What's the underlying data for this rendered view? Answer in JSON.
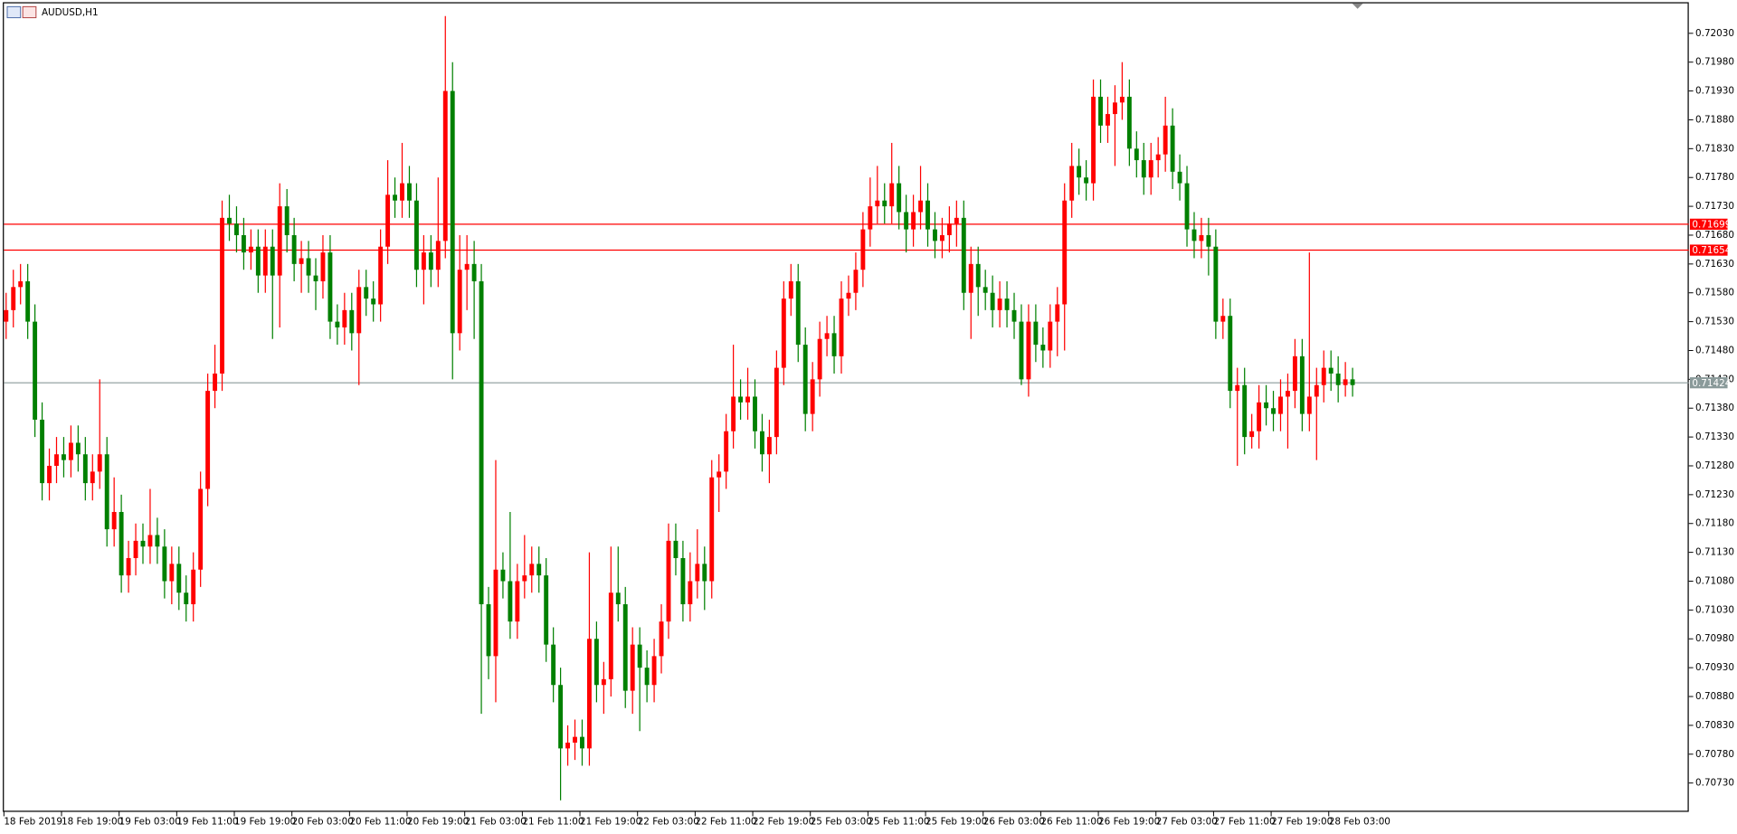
{
  "chart_data": {
    "type": "candlestick",
    "title": "AUDUSD,H1",
    "categories": [
      "18 Feb 2019",
      null,
      null,
      null,
      null,
      null,
      null,
      null,
      "18 Feb 19:00",
      null,
      null,
      null,
      null,
      null,
      null,
      null,
      "19 Feb 03:00",
      null,
      null,
      null,
      null,
      null,
      null,
      null,
      "19 Feb 11:00",
      null,
      null,
      null,
      null,
      null,
      null,
      null,
      "19 Feb 19:00",
      null,
      null,
      null,
      null,
      null,
      null,
      null,
      "20 Feb 03:00",
      null,
      null,
      null,
      null,
      null,
      null,
      null,
      "20 Feb 11:00",
      null,
      null,
      null,
      null,
      null,
      null,
      null,
      "20 Feb 19:00",
      null,
      null,
      null,
      null,
      null,
      null,
      null,
      "21 Feb 03:00",
      null,
      null,
      null,
      null,
      null,
      null,
      null,
      "21 Feb 11:00",
      null,
      null,
      null,
      null,
      null,
      null,
      null,
      "21 Feb 19:00",
      null,
      null,
      null,
      null,
      null,
      null,
      null,
      "22 Feb 03:00",
      null,
      null,
      null,
      null,
      null,
      null,
      null,
      "22 Feb 11:00",
      null,
      null,
      null,
      null,
      null,
      null,
      null,
      "22 Feb 19:00",
      null,
      null,
      null,
      null,
      null,
      null,
      null,
      "25 Feb 03:00",
      null,
      null,
      null,
      null,
      null,
      null,
      null,
      "25 Feb 11:00",
      null,
      null,
      null,
      null,
      null,
      null,
      null,
      "25 Feb 19:00",
      null,
      null,
      null,
      null,
      null,
      null,
      null,
      "26 Feb 03:00",
      null,
      null,
      null,
      null,
      null,
      null,
      null,
      "26 Feb 11:00",
      null,
      null,
      null,
      null,
      null,
      null,
      null,
      "26 Feb 19:00",
      null,
      null,
      null,
      null,
      null,
      null,
      null,
      "27 Feb 03:00",
      null,
      null,
      null,
      null,
      null,
      null,
      null,
      "27 Feb 11:00",
      null,
      null,
      null,
      null,
      null,
      null,
      null,
      "27 Feb 19:00",
      null,
      null,
      null,
      null,
      null,
      null,
      null,
      "28 Feb 03:00",
      null,
      null,
      null
    ],
    "open": [
      0.7153,
      0.7155,
      0.7159,
      0.716,
      0.7153,
      0.7136,
      0.7125,
      0.7128,
      0.713,
      0.7129,
      0.7132,
      0.713,
      0.7125,
      0.7127,
      0.713,
      0.7117,
      0.712,
      0.7109,
      0.7112,
      0.7115,
      0.7114,
      0.7116,
      0.7114,
      0.7108,
      0.7111,
      0.7106,
      0.7104,
      0.711,
      0.7124,
      0.7141,
      0.7144,
      0.7171,
      0.717,
      0.7168,
      0.7165,
      0.7166,
      0.7161,
      0.7166,
      0.7161,
      0.7173,
      0.7168,
      0.7163,
      0.7164,
      0.7161,
      0.716,
      0.7165,
      0.7153,
      0.7152,
      0.7155,
      0.7151,
      0.7159,
      0.7157,
      0.7156,
      0.7166,
      0.7175,
      0.7174,
      0.7177,
      0.7174,
      0.7162,
      0.7165,
      0.7162,
      0.7167,
      0.7193,
      0.7151,
      0.7162,
      0.7163,
      0.716,
      0.7104,
      0.7095,
      0.711,
      0.7108,
      0.7101,
      0.7108,
      0.7109,
      0.7111,
      0.7109,
      0.7097,
      0.709,
      0.7079,
      0.708,
      0.7081,
      0.7079,
      0.7098,
      0.709,
      0.7091,
      0.7106,
      0.7104,
      0.7089,
      0.7097,
      0.7093,
      0.709,
      0.7095,
      0.7101,
      0.7115,
      0.7112,
      0.7104,
      0.7108,
      0.7111,
      0.7108,
      0.7126,
      0.7127,
      0.7134,
      0.714,
      0.7139,
      0.714,
      0.7134,
      0.713,
      0.7133,
      0.7145,
      0.7157,
      0.716,
      0.7149,
      0.7137,
      0.7143,
      0.715,
      0.7151,
      0.7147,
      0.7157,
      0.7158,
      0.7162,
      0.7169,
      0.7173,
      0.7174,
      0.7173,
      0.7177,
      0.7172,
      0.7169,
      0.7172,
      0.7174,
      0.7169,
      0.7167,
      0.7168,
      0.717,
      0.7171,
      0.7158,
      0.7163,
      0.7159,
      0.7158,
      0.7155,
      0.7157,
      0.7155,
      0.7153,
      0.7143,
      0.7153,
      0.7149,
      0.7148,
      0.7153,
      0.7156,
      0.7174,
      0.718,
      0.7178,
      0.7177,
      0.7192,
      0.7187,
      0.7189,
      0.7191,
      0.7192,
      0.7183,
      0.7181,
      0.7178,
      0.7181,
      0.7182,
      0.7187,
      0.7179,
      0.7177,
      0.7169,
      0.7167,
      0.7168,
      0.7166,
      0.7153,
      0.7154,
      0.7141,
      0.7142,
      0.7133,
      0.7134,
      0.7139,
      0.7138,
      0.7137,
      0.714,
      0.7141,
      0.7147,
      0.7137,
      0.714,
      0.7142,
      0.7145,
      0.7144,
      0.7142,
      0.7143
    ],
    "high": [
      0.7158,
      0.7162,
      0.7163,
      0.7163,
      0.7156,
      0.7139,
      0.7131,
      0.7133,
      0.7133,
      0.7135,
      0.7135,
      0.7133,
      0.713,
      0.7143,
      0.7133,
      0.7126,
      0.7123,
      0.7115,
      0.7118,
      0.7118,
      0.7124,
      0.7119,
      0.7117,
      0.7114,
      0.7114,
      0.7109,
      0.7113,
      0.7127,
      0.7144,
      0.7149,
      0.7174,
      0.7175,
      0.7173,
      0.7171,
      0.7169,
      0.7169,
      0.7169,
      0.7169,
      0.7177,
      0.7176,
      0.7171,
      0.7167,
      0.7167,
      0.7164,
      0.7168,
      0.7168,
      0.7156,
      0.7158,
      0.7158,
      0.7162,
      0.7162,
      0.716,
      0.7169,
      0.7181,
      0.7178,
      0.7184,
      0.718,
      0.7177,
      0.7168,
      0.7168,
      0.7178,
      0.7206,
      0.7198,
      0.7168,
      0.7168,
      0.7167,
      0.7163,
      0.7107,
      0.7129,
      0.7113,
      0.712,
      0.7111,
      0.7116,
      0.7114,
      0.7114,
      0.7112,
      0.71,
      0.7093,
      0.7083,
      0.7084,
      0.7084,
      0.7113,
      0.7101,
      0.7094,
      0.7114,
      0.7114,
      0.7107,
      0.71,
      0.71,
      0.7096,
      0.7098,
      0.7104,
      0.7118,
      0.7118,
      0.7115,
      0.7113,
      0.7117,
      0.7114,
      0.7129,
      0.713,
      0.7137,
      0.7149,
      0.7143,
      0.7145,
      0.7143,
      0.7137,
      0.7136,
      0.7148,
      0.716,
      0.7163,
      0.7163,
      0.7152,
      0.7146,
      0.7153,
      0.7154,
      0.7154,
      0.716,
      0.7161,
      0.7165,
      0.7172,
      0.7178,
      0.718,
      0.7177,
      0.7184,
      0.718,
      0.7175,
      0.7175,
      0.718,
      0.7177,
      0.7172,
      0.7171,
      0.7173,
      0.7174,
      0.7174,
      0.7166,
      0.7166,
      0.7162,
      0.7161,
      0.716,
      0.716,
      0.7158,
      0.7156,
      0.7156,
      0.7156,
      0.7152,
      0.7156,
      0.7159,
      0.7177,
      0.7184,
      0.7183,
      0.7181,
      0.7195,
      0.7195,
      0.7192,
      0.7194,
      0.7198,
      0.7195,
      0.7186,
      0.7184,
      0.7184,
      0.7185,
      0.7192,
      0.719,
      0.7182,
      0.718,
      0.7172,
      0.7171,
      0.7171,
      0.7169,
      0.7157,
      0.7157,
      0.7145,
      0.7145,
      0.7137,
      0.7142,
      0.7142,
      0.7141,
      0.7143,
      0.7144,
      0.715,
      0.715,
      0.7165,
      0.7145,
      0.7148,
      0.7148,
      0.7147,
      0.7146,
      0.7145
    ],
    "low": [
      0.715,
      0.7152,
      0.7156,
      0.715,
      0.7133,
      0.7122,
      0.7122,
      0.7125,
      0.7126,
      0.7126,
      0.7127,
      0.7122,
      0.7122,
      0.7124,
      0.7114,
      0.7114,
      0.7106,
      0.7106,
      0.7109,
      0.7111,
      0.7111,
      0.7111,
      0.7105,
      0.7104,
      0.7103,
      0.7101,
      0.7101,
      0.7107,
      0.7121,
      0.7138,
      0.7141,
      0.7167,
      0.7165,
      0.7162,
      0.7162,
      0.7158,
      0.7158,
      0.715,
      0.7152,
      0.7165,
      0.716,
      0.7158,
      0.7158,
      0.7155,
      0.7157,
      0.715,
      0.7149,
      0.7149,
      0.7148,
      0.7142,
      0.7154,
      0.7153,
      0.7153,
      0.7163,
      0.7171,
      0.7171,
      0.7171,
      0.7159,
      0.7156,
      0.7159,
      0.7159,
      0.7164,
      0.7143,
      0.7148,
      0.7155,
      0.715,
      0.7085,
      0.7091,
      0.7087,
      0.7105,
      0.7098,
      0.7098,
      0.7105,
      0.7106,
      0.7106,
      0.7094,
      0.7087,
      0.707,
      0.7076,
      0.7077,
      0.7076,
      0.7076,
      0.7087,
      0.7085,
      0.7088,
      0.7101,
      0.7086,
      0.7085,
      0.7082,
      0.7087,
      0.7087,
      0.7092,
      0.7098,
      0.7109,
      0.7101,
      0.7101,
      0.7105,
      0.7103,
      0.7105,
      0.712,
      0.7124,
      0.7131,
      0.7136,
      0.7136,
      0.7131,
      0.7127,
      0.7125,
      0.713,
      0.7142,
      0.7154,
      0.7146,
      0.7134,
      0.7134,
      0.714,
      0.7147,
      0.7144,
      0.7144,
      0.7154,
      0.7155,
      0.7159,
      0.7166,
      0.717,
      0.717,
      0.717,
      0.7169,
      0.7165,
      0.7166,
      0.7169,
      0.7166,
      0.7164,
      0.7164,
      0.7165,
      0.7166,
      0.7155,
      0.715,
      0.7154,
      0.7155,
      0.7152,
      0.7152,
      0.7152,
      0.715,
      0.7142,
      0.714,
      0.7146,
      0.7145,
      0.7145,
      0.7147,
      0.7148,
      0.7171,
      0.7175,
      0.7174,
      0.7174,
      0.7184,
      0.7184,
      0.718,
      0.7188,
      0.718,
      0.7178,
      0.7175,
      0.7175,
      0.7178,
      0.7179,
      0.7176,
      0.7174,
      0.7166,
      0.7164,
      0.7164,
      0.7161,
      0.715,
      0.715,
      0.7138,
      0.7128,
      0.713,
      0.7131,
      0.7131,
      0.7135,
      0.7134,
      0.7134,
      0.7131,
      0.7138,
      0.7134,
      0.7134,
      0.7129,
      0.7139,
      0.7141,
      0.7139,
      0.714,
      0.714
    ],
    "close": [
      0.7155,
      0.7159,
      0.716,
      0.7153,
      0.7136,
      0.7125,
      0.7128,
      0.713,
      0.7129,
      0.7132,
      0.713,
      0.7125,
      0.7127,
      0.713,
      0.7117,
      0.712,
      0.7109,
      0.7112,
      0.7115,
      0.7114,
      0.7116,
      0.7114,
      0.7108,
      0.7111,
      0.7106,
      0.7104,
      0.711,
      0.7124,
      0.7141,
      0.7144,
      0.7171,
      0.717,
      0.7168,
      0.7165,
      0.7166,
      0.7161,
      0.7166,
      0.7161,
      0.7173,
      0.7168,
      0.7163,
      0.7164,
      0.7161,
      0.716,
      0.7165,
      0.7153,
      0.7152,
      0.7155,
      0.7151,
      0.7159,
      0.7157,
      0.7156,
      0.7166,
      0.7175,
      0.7174,
      0.7177,
      0.7174,
      0.7162,
      0.7165,
      0.7162,
      0.7167,
      0.7193,
      0.7151,
      0.7162,
      0.7163,
      0.716,
      0.7104,
      0.7095,
      0.711,
      0.7108,
      0.7101,
      0.7108,
      0.7109,
      0.7111,
      0.7109,
      0.7097,
      0.709,
      0.7079,
      0.708,
      0.7081,
      0.7079,
      0.7098,
      0.709,
      0.7091,
      0.7106,
      0.7104,
      0.7089,
      0.7097,
      0.7093,
      0.709,
      0.7095,
      0.7101,
      0.7115,
      0.7112,
      0.7104,
      0.7108,
      0.7111,
      0.7108,
      0.7126,
      0.7127,
      0.7134,
      0.714,
      0.7139,
      0.714,
      0.7134,
      0.713,
      0.7133,
      0.7145,
      0.7157,
      0.716,
      0.7149,
      0.7137,
      0.7143,
      0.715,
      0.7151,
      0.7147,
      0.7157,
      0.7158,
      0.7162,
      0.7169,
      0.7173,
      0.7174,
      0.7173,
      0.7177,
      0.7172,
      0.7169,
      0.7172,
      0.7174,
      0.7169,
      0.7167,
      0.7168,
      0.717,
      0.7171,
      0.7158,
      0.7163,
      0.7159,
      0.7158,
      0.7155,
      0.7157,
      0.7155,
      0.7153,
      0.7143,
      0.7153,
      0.7149,
      0.7148,
      0.7153,
      0.7156,
      0.7174,
      0.718,
      0.7178,
      0.7177,
      0.7192,
      0.7187,
      0.7189,
      0.7191,
      0.7192,
      0.7183,
      0.7181,
      0.7178,
      0.7181,
      0.7182,
      0.7187,
      0.7179,
      0.7177,
      0.7169,
      0.7167,
      0.7168,
      0.7166,
      0.7153,
      0.7154,
      0.7141,
      0.7142,
      0.7133,
      0.7134,
      0.7139,
      0.7138,
      0.7137,
      0.714,
      0.7141,
      0.7147,
      0.7137,
      0.714,
      0.7142,
      0.7145,
      0.7144,
      0.7142,
      0.7143,
      0.7142
    ],
    "up_color": "#ff0000",
    "down_color": "#008000",
    "ylim": [
      0.7068,
      0.72082
    ],
    "yticks": [
      {
        "value": 0.7073,
        "label": "0.70730"
      },
      {
        "value": 0.7078,
        "label": "0.70780"
      },
      {
        "value": 0.7083,
        "label": "0.70830"
      },
      {
        "value": 0.7088,
        "label": "0.70880"
      },
      {
        "value": 0.7093,
        "label": "0.70930"
      },
      {
        "value": 0.7098,
        "label": "0.70980"
      },
      {
        "value": 0.7103,
        "label": "0.71030"
      },
      {
        "value": 0.7108,
        "label": "0.71080"
      },
      {
        "value": 0.7113,
        "label": "0.71130"
      },
      {
        "value": 0.7118,
        "label": "0.71180"
      },
      {
        "value": 0.7123,
        "label": "0.71230"
      },
      {
        "value": 0.7128,
        "label": "0.71280"
      },
      {
        "value": 0.7133,
        "label": "0.71330"
      },
      {
        "value": 0.7138,
        "label": "0.71380"
      },
      {
        "value": 0.7143,
        "label": "0.71430"
      },
      {
        "value": 0.7148,
        "label": "0.71480"
      },
      {
        "value": 0.7153,
        "label": "0.71530"
      },
      {
        "value": 0.7158,
        "label": "0.71580"
      },
      {
        "value": 0.7163,
        "label": "0.71630"
      },
      {
        "value": 0.7168,
        "label": "0.71680"
      },
      {
        "value": 0.7173,
        "label": "0.71730"
      },
      {
        "value": 0.7178,
        "label": "0.71780"
      },
      {
        "value": 0.7183,
        "label": "0.71830"
      },
      {
        "value": 0.7188,
        "label": "0.71880"
      },
      {
        "value": 0.7193,
        "label": "0.71930"
      },
      {
        "value": 0.7198,
        "label": "0.71980"
      },
      {
        "value": 0.7203,
        "label": "0.72030"
      }
    ],
    "grid": false,
    "hlines": [
      {
        "value": 0.71699,
        "color": "#ff0000"
      },
      {
        "value": 0.71654,
        "color": "#ff0000"
      }
    ],
    "current_price": {
      "value": 0.71424,
      "color": "#8a9a9a"
    }
  }
}
